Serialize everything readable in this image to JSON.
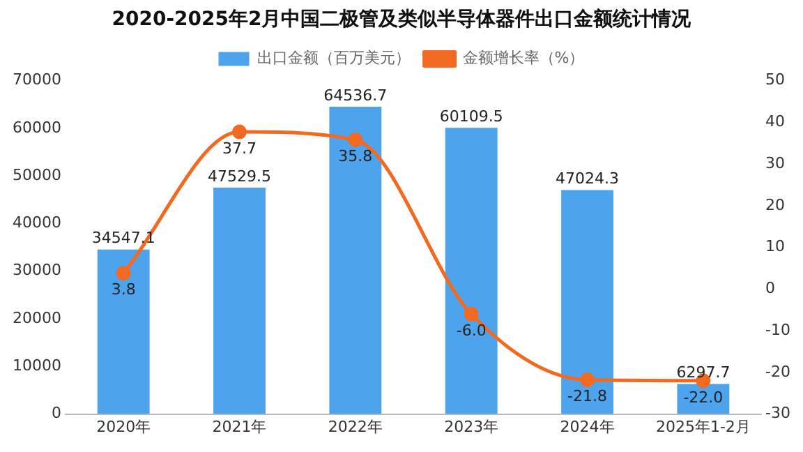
{
  "chart_data": {
    "type": "bar",
    "title": "2020-2025年2月中国二极管及类似半导体器件出口金额统计情况",
    "categories": [
      "2020年",
      "2021年",
      "2022年",
      "2023年",
      "2024年",
      "2025年1-2月"
    ],
    "series": [
      {
        "name": "出口金额（百万美元）",
        "color": "#4da3ec",
        "values": [
          34547.1,
          47529.5,
          64536.7,
          60109.5,
          47024.3,
          6297.7
        ],
        "value_labels": [
          "34547.1",
          "47529.5",
          "64536.7",
          "60109.5",
          "47024.3",
          "6297.7"
        ]
      },
      {
        "name": "金额增长率（%）",
        "type": "line",
        "axis": "y2",
        "color": "#f26a21",
        "values": [
          3.8,
          37.7,
          35.8,
          -6.0,
          -21.8,
          -22.0
        ],
        "value_labels": [
          "3.8",
          "37.7",
          "35.8",
          "-6.0",
          "-21.8",
          "-22.0"
        ]
      }
    ],
    "ylim": [
      0,
      70000
    ],
    "yticks": [
      0,
      10000,
      20000,
      30000,
      40000,
      50000,
      60000,
      70000
    ],
    "y2lim": [
      -30,
      50
    ],
    "y2ticks": [
      -30,
      -20,
      -10,
      0,
      10,
      20,
      30,
      40,
      50
    ],
    "legend": "top",
    "marker": "circle",
    "grid": false
  }
}
